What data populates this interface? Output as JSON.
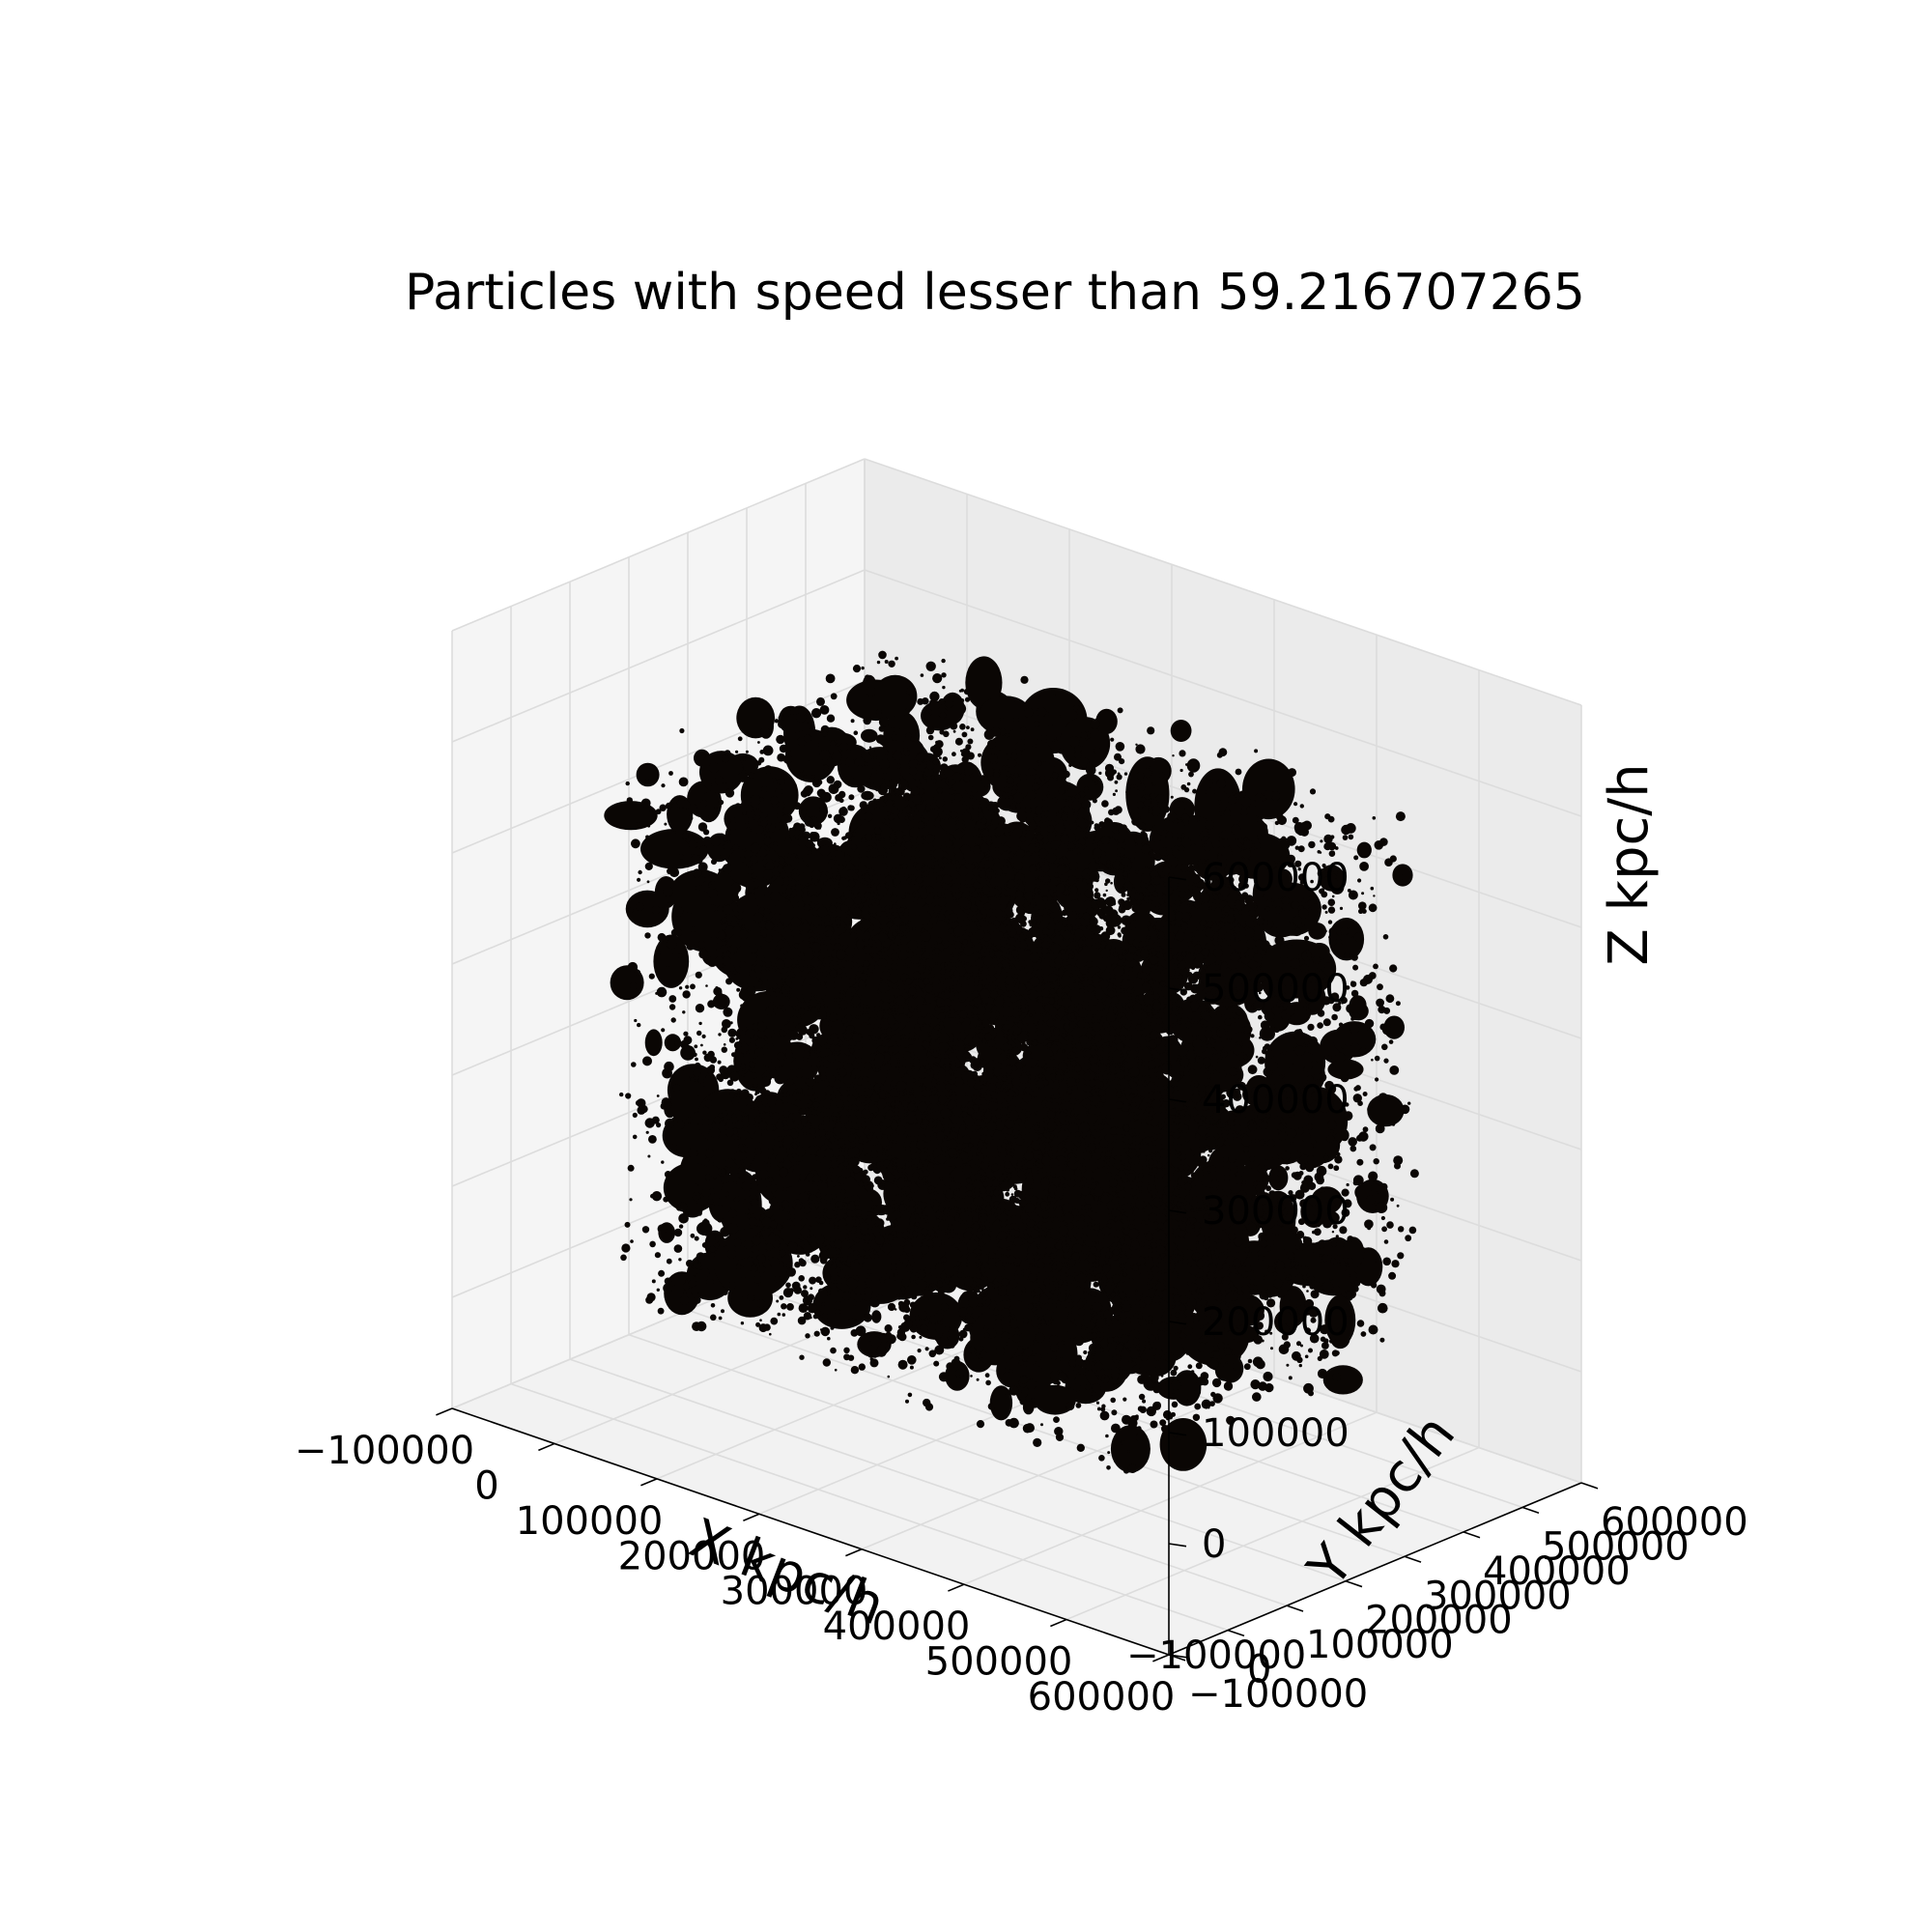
{
  "chart_data": {
    "type": "scatter",
    "projection": "3d",
    "title": "Particles with speed lesser than 59.216707265",
    "xlabel": "X kpc/h",
    "ylabel": "Y kpc/h",
    "zlabel": "Z kpc/h",
    "xlim": [
      -100000,
      600000
    ],
    "ylim": [
      -100000,
      600000
    ],
    "zlim": [
      -100000,
      600000
    ],
    "xticks": [
      "−100000",
      "0",
      "100000",
      "200000",
      "300000",
      "400000",
      "500000",
      "600000"
    ],
    "yticks": [
      "−100000",
      "0",
      "100000",
      "200000",
      "300000",
      "400000",
      "500000",
      "600000"
    ],
    "zticks": [
      "−100000",
      "0",
      "100000",
      "200000",
      "300000",
      "400000",
      "500000",
      "600000"
    ],
    "grid": true,
    "marker_color": "#0a0604",
    "pane_colors": [
      "#f2f2f2",
      "#ebebeb",
      "#f5f5f5"
    ],
    "data_extent": {
      "x": [
        0,
        500000
      ],
      "y": [
        0,
        500000
      ],
      "z": [
        0,
        500000
      ]
    },
    "distribution": "dense filamentary cosmic-web particle cloud filling the data extent"
  }
}
